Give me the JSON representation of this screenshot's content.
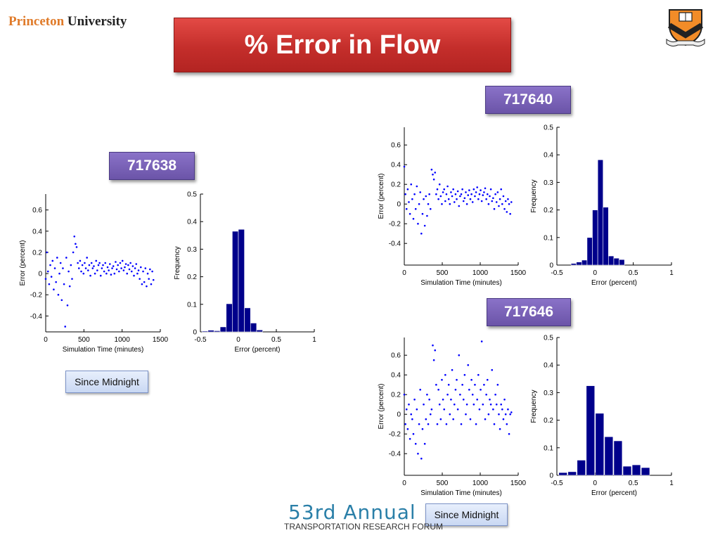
{
  "header": {
    "logo_part1": "Princeton",
    "logo_part2": "University",
    "crest_icon": "princeton-shield-icon",
    "title": "% Error in Flow"
  },
  "labels": {
    "sensor_1": "717638",
    "sensor_2": "717640",
    "sensor_3": "717646",
    "button_1": "Since Midnight",
    "button_2": "Since Midnight"
  },
  "footer": {
    "annual": "53rd Annual",
    "forum": "TRANSPORTATION RESEARCH FORUM"
  },
  "colors": {
    "title_bg": "#c42e2b",
    "label_bg": "#6b54a8",
    "bar_fill": "#00008b",
    "point_color": "#0000ff",
    "footer_accent": "#2a7fa8"
  },
  "chart_data": [
    {
      "id": "scatter-717638",
      "type": "scatter",
      "sensor": "717638",
      "xlabel": "Simulation Time (minutes)",
      "ylabel": "Error (percent)",
      "xlim": [
        0,
        1500
      ],
      "ylim": [
        -0.55,
        0.75
      ],
      "xticks": [
        0,
        500,
        1000,
        1500
      ],
      "yticks": [
        -0.4,
        -0.2,
        0,
        0.2,
        0.4,
        0.6
      ],
      "xtick_labels": [
        "0",
        "500",
        "1000",
        "1500"
      ],
      "ytick_labels": [
        "-0.4",
        "-0.2",
        "0",
        "0.2",
        "0.4",
        "0.6"
      ],
      "x": [
        0,
        15,
        30,
        45,
        60,
        75,
        90,
        105,
        120,
        135,
        150,
        165,
        180,
        195,
        210,
        225,
        240,
        255,
        270,
        285,
        300,
        315,
        330,
        345,
        360,
        375,
        390,
        405,
        420,
        435,
        450,
        465,
        480,
        495,
        510,
        525,
        540,
        555,
        570,
        585,
        600,
        615,
        630,
        645,
        660,
        675,
        690,
        705,
        720,
        735,
        750,
        765,
        780,
        795,
        810,
        825,
        840,
        855,
        870,
        885,
        900,
        915,
        930,
        945,
        960,
        975,
        990,
        1005,
        1020,
        1035,
        1050,
        1065,
        1080,
        1095,
        1110,
        1125,
        1140,
        1155,
        1170,
        1185,
        1200,
        1215,
        1230,
        1245,
        1260,
        1275,
        1290,
        1305,
        1320,
        1335,
        1350,
        1365,
        1380,
        1395,
        1410
      ],
      "y": [
        -0.05,
        0.2,
        0.02,
        -0.1,
        0.08,
        -0.03,
        0.12,
        -0.15,
        0.05,
        -0.08,
        0.15,
        -0.2,
        0.0,
        0.1,
        -0.25,
        0.05,
        -0.1,
        -0.5,
        0.15,
        -0.3,
        0.02,
        -0.12,
        0.08,
        -0.05,
        0.2,
        0.35,
        0.28,
        0.25,
        0.1,
        0.05,
        0.12,
        0.02,
        0.08,
        0.0,
        0.1,
        0.05,
        0.15,
        0.03,
        0.08,
        -0.02,
        0.1,
        0.05,
        0.07,
        0.0,
        0.12,
        0.03,
        0.08,
        0.1,
        -0.02,
        0.05,
        0.08,
        0.02,
        0.1,
        0.0,
        0.06,
        0.03,
        0.09,
        -0.01,
        0.05,
        0.07,
        0.0,
        0.11,
        0.04,
        0.08,
        0.02,
        0.1,
        0.05,
        0.12,
        0.03,
        0.06,
        0.09,
        0.0,
        0.08,
        0.04,
        0.1,
        0.02,
        0.07,
        -0.02,
        0.05,
        0.09,
        0.0,
        0.03,
        -0.05,
        0.06,
        -0.1,
        0.02,
        -0.08,
        0.05,
        -0.12,
        0.0,
        -0.05,
        0.04,
        -0.1,
        0.02,
        -0.06
      ]
    },
    {
      "id": "hist-717638",
      "type": "bar",
      "sensor": "717638",
      "xlabel": "Error (percent)",
      "ylabel": "Frequency",
      "xlim": [
        -0.5,
        1
      ],
      "ylim": [
        0,
        0.5
      ],
      "xticks": [
        -0.5,
        0,
        0.5,
        1
      ],
      "yticks": [
        0,
        0.1,
        0.2,
        0.3,
        0.4,
        0.5
      ],
      "xtick_labels": [
        "-0.5",
        "0",
        "0.5",
        "1"
      ],
      "ytick_labels": [
        "0",
        "0.1",
        "0.2",
        "0.3",
        "0.4",
        "0.5"
      ],
      "bin_width": 0.08,
      "bin_centers": [
        -0.44,
        -0.36,
        -0.28,
        -0.2,
        -0.12,
        -0.04,
        0.04,
        0.12,
        0.2,
        0.28
      ],
      "values": [
        0.003,
        0.006,
        0.004,
        0.018,
        0.102,
        0.365,
        0.372,
        0.087,
        0.032,
        0.007
      ]
    },
    {
      "id": "scatter-717640",
      "type": "scatter",
      "sensor": "717640",
      "xlabel": "Simulation Time (minutes)",
      "ylabel": "Error (percent)",
      "xlim": [
        0,
        1500
      ],
      "ylim": [
        -0.62,
        0.78
      ],
      "xticks": [
        0,
        500,
        1000,
        1500
      ],
      "yticks": [
        -0.4,
        -0.2,
        0,
        0.2,
        0.4,
        0.6
      ],
      "xtick_labels": [
        "0",
        "500",
        "1000",
        "1500"
      ],
      "ytick_labels": [
        "-0.4",
        "-0.2",
        "0",
        "0.2",
        "0.4",
        "0.6"
      ],
      "x": [
        0,
        15,
        30,
        45,
        60,
        75,
        90,
        105,
        120,
        135,
        150,
        165,
        180,
        195,
        210,
        225,
        240,
        255,
        270,
        285,
        300,
        315,
        330,
        345,
        360,
        375,
        390,
        405,
        420,
        435,
        450,
        465,
        480,
        495,
        510,
        525,
        540,
        555,
        570,
        585,
        600,
        615,
        630,
        645,
        660,
        675,
        690,
        705,
        720,
        735,
        750,
        765,
        780,
        795,
        810,
        825,
        840,
        855,
        870,
        885,
        900,
        915,
        930,
        945,
        960,
        975,
        990,
        1005,
        1020,
        1035,
        1050,
        1065,
        1080,
        1095,
        1110,
        1125,
        1140,
        1155,
        1170,
        1185,
        1200,
        1215,
        1230,
        1245,
        1260,
        1275,
        1290,
        1305,
        1320,
        1335,
        1350,
        1365,
        1380,
        1395,
        1410
      ],
      "y": [
        0.38,
        0.1,
        -0.05,
        0.15,
        0.02,
        -0.1,
        0.2,
        0.05,
        -0.15,
        0.1,
        -0.05,
        0.18,
        -0.2,
        0.0,
        0.12,
        -0.3,
        -0.1,
        0.05,
        -0.22,
        0.08,
        -0.12,
        0.0,
        0.1,
        -0.05,
        0.35,
        0.3,
        0.25,
        0.32,
        0.1,
        0.15,
        0.05,
        0.2,
        0.08,
        0.0,
        0.12,
        0.15,
        0.03,
        0.1,
        0.18,
        0.05,
        0.0,
        0.12,
        0.08,
        0.15,
        0.02,
        0.1,
        0.05,
        0.13,
        -0.02,
        0.08,
        0.1,
        0.15,
        0.03,
        0.06,
        0.12,
        0.0,
        0.09,
        0.14,
        0.05,
        0.1,
        0.02,
        0.15,
        0.08,
        0.12,
        0.17,
        0.05,
        0.1,
        0.14,
        0.03,
        0.09,
        0.12,
        0.16,
        0.05,
        0.1,
        0.0,
        0.08,
        0.15,
        0.03,
        0.06,
        -0.05,
        0.1,
        0.02,
        0.12,
        -0.02,
        0.05,
        0.15,
        0.0,
        0.08,
        -0.05,
        0.03,
        -0.08,
        0.05,
        0.0,
        -0.1,
        0.02
      ]
    },
    {
      "id": "hist-717640",
      "type": "bar",
      "sensor": "717640",
      "xlabel": "Error (percent)",
      "ylabel": "Frequency",
      "xlim": [
        -0.5,
        1
      ],
      "ylim": [
        0,
        0.5
      ],
      "xticks": [
        -0.5,
        0,
        0.5,
        1
      ],
      "yticks": [
        0,
        0.1,
        0.2,
        0.3,
        0.4,
        0.5
      ],
      "xtick_labels": [
        "-0.5",
        "0",
        "0.5",
        "1"
      ],
      "ytick_labels": [
        "0",
        "0.1",
        "0.2",
        "0.3",
        "0.4",
        "0.5"
      ],
      "bin_width": 0.07,
      "bin_centers": [
        -0.28,
        -0.21,
        -0.14,
        -0.07,
        0.0,
        0.07,
        0.14,
        0.21,
        0.28,
        0.35
      ],
      "values": [
        0.006,
        0.011,
        0.018,
        0.1,
        0.2,
        0.382,
        0.21,
        0.033,
        0.025,
        0.02
      ]
    },
    {
      "id": "scatter-717646",
      "type": "scatter",
      "sensor": "717646",
      "xlabel": "Simulation Time (minutes)",
      "ylabel": "Error (percent)",
      "xlim": [
        0,
        1500
      ],
      "ylim": [
        -0.62,
        0.78
      ],
      "xticks": [
        0,
        500,
        1000,
        1500
      ],
      "yticks": [
        -0.4,
        -0.2,
        0,
        0.2,
        0.4,
        0.6
      ],
      "xtick_labels": [
        "0",
        "500",
        "1000",
        "1500"
      ],
      "ytick_labels": [
        "-0.4",
        "-0.2",
        "0",
        "0.2",
        "0.4",
        "0.6"
      ],
      "x": [
        0,
        15,
        30,
        45,
        60,
        75,
        90,
        105,
        120,
        135,
        150,
        165,
        180,
        195,
        210,
        225,
        240,
        255,
        270,
        285,
        300,
        315,
        330,
        345,
        360,
        375,
        390,
        405,
        420,
        435,
        450,
        465,
        480,
        495,
        510,
        525,
        540,
        555,
        570,
        585,
        600,
        615,
        630,
        645,
        660,
        675,
        690,
        705,
        720,
        735,
        750,
        765,
        780,
        795,
        810,
        825,
        840,
        855,
        870,
        885,
        900,
        915,
        930,
        945,
        960,
        975,
        990,
        1005,
        1020,
        1035,
        1050,
        1065,
        1080,
        1095,
        1110,
        1125,
        1140,
        1155,
        1170,
        1185,
        1200,
        1215,
        1230,
        1245,
        1260,
        1275,
        1290,
        1305,
        1320,
        1335,
        1350,
        1365,
        1380,
        1395,
        1410
      ],
      "y": [
        0.2,
        -0.1,
        0.05,
        -0.15,
        0.1,
        -0.25,
        0.0,
        -0.05,
        -0.2,
        0.15,
        -0.3,
        0.05,
        -0.4,
        -0.1,
        0.25,
        -0.45,
        -0.15,
        0.1,
        -0.3,
        -0.05,
        0.2,
        -0.1,
        0.15,
        0.0,
        0.05,
        0.7,
        0.55,
        0.65,
        0.3,
        -0.1,
        0.25,
        0.1,
        -0.05,
        0.35,
        0.15,
        0.05,
        0.4,
        -0.1,
        0.2,
        0.3,
        0.0,
        0.15,
        0.45,
        -0.05,
        0.1,
        0.25,
        0.35,
        0.05,
        0.6,
        0.2,
        -0.1,
        0.3,
        0.15,
        0.4,
        0.0,
        0.1,
        0.5,
        0.25,
        -0.05,
        0.35,
        0.2,
        0.1,
        0.3,
        -0.1,
        0.15,
        0.4,
        0.05,
        0.25,
        0.74,
        0.1,
        0.3,
        -0.05,
        0.2,
        0.35,
        0.0,
        0.15,
        0.1,
        0.45,
        0.05,
        -0.1,
        0.2,
        0.1,
        0.3,
        0.0,
        -0.15,
        0.1,
        0.05,
        -0.05,
        0.15,
        0.0,
        -0.1,
        0.05,
        -0.2,
        0.0,
        0.02
      ]
    },
    {
      "id": "hist-717646",
      "type": "bar",
      "sensor": "717646",
      "xlabel": "Error (percent)",
      "ylabel": "Frequency",
      "xlim": [
        -0.5,
        1
      ],
      "ylim": [
        0,
        0.5
      ],
      "xticks": [
        -0.5,
        0,
        0.5,
        1
      ],
      "yticks": [
        0,
        0.1,
        0.2,
        0.3,
        0.4,
        0.5
      ],
      "xtick_labels": [
        "-0.5",
        "0",
        "0.5",
        "1"
      ],
      "ytick_labels": [
        "0",
        "0.1",
        "0.2",
        "0.3",
        "0.4",
        "0.5"
      ],
      "bin_width": 0.11,
      "bin_centers": [
        -0.42,
        -0.3,
        -0.18,
        -0.06,
        0.06,
        0.18,
        0.3,
        0.42,
        0.54,
        0.66
      ],
      "values": [
        0.01,
        0.013,
        0.055,
        0.325,
        0.225,
        0.14,
        0.125,
        0.033,
        0.038,
        0.028
      ]
    }
  ]
}
